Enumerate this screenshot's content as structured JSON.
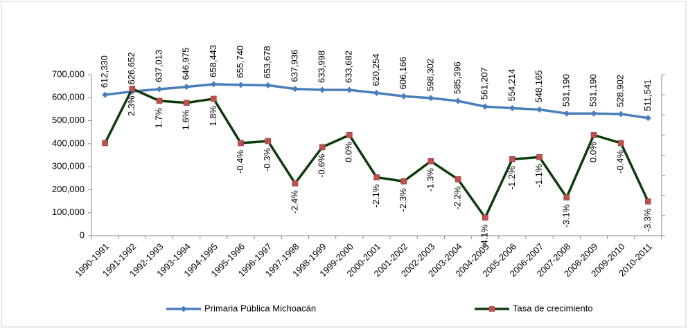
{
  "chart_data": {
    "type": "line",
    "categories": [
      "1990-1991",
      "1991-1992",
      "1992-1993",
      "1993-1994",
      "1994-1995",
      "1995-1996",
      "1996-1997",
      "1997-1998",
      "1998-1999",
      "1999-2000",
      "2000-2001",
      "2001-2002",
      "2002-2003",
      "2003-2004",
      "2004-2005",
      "2005-2006",
      "2006-2007",
      "2007-2008",
      "2008-2009",
      "2009-2010",
      "2010-2011"
    ],
    "ylim": [
      0,
      700000
    ],
    "yticks": [
      0,
      {
        "value": 100000,
        "label": "100,000"
      },
      {
        "value": 200000,
        "label": "200,000"
      },
      {
        "value": 300000,
        "label": "300,000"
      },
      {
        "value": 400000,
        "label": "400,000"
      },
      {
        "value": 500000,
        "label": "500,000"
      },
      {
        "value": 600000,
        "label": "600,000"
      },
      {
        "value": 700000,
        "label": "700,000"
      }
    ],
    "y2lim": [
      -5,
      3
    ],
    "y2ticks": [
      -5,
      -4,
      -3,
      -2,
      -1,
      0,
      1,
      2,
      3
    ],
    "legend": "bottom",
    "series": [
      {
        "name": "Primaria Pública Michoacán",
        "color": "#4a7ebb",
        "marker_color": "#4a7ebb",
        "values": [
          612330,
          626652,
          637013,
          646975,
          658443,
          655740,
          653678,
          637936,
          633998,
          633682,
          620254,
          606166,
          598302,
          585396,
          561207,
          554214,
          548165,
          531190,
          531190,
          528902,
          511541
        ],
        "value_labels": [
          "612,330",
          "626,652",
          "637,013",
          "646,975",
          "658,443",
          "655,740",
          "653,678",
          "637,936",
          "633,998",
          "633,682",
          "620,254",
          "606,166",
          "598,302",
          "585,396",
          "561,207",
          "554,214",
          "548,165",
          "531,190",
          "531,190",
          "528,902",
          "511,541"
        ]
      },
      {
        "name": "Tasa de crecimiento",
        "color": "#0b3b0b",
        "marker_color": "#c0504d",
        "axis": "y2",
        "values": [
          -0.4,
          2.3,
          1.7,
          1.6,
          1.8,
          -0.4,
          -0.3,
          -2.4,
          -0.6,
          0.0,
          -2.1,
          -2.3,
          -1.3,
          -2.2,
          -4.1,
          -1.2,
          -1.1,
          -3.1,
          0.0,
          -0.4,
          -3.3
        ],
        "value_labels": [
          null,
          "2.3%",
          "1.7%",
          "1.6%",
          "1.8%",
          "-0.4%",
          "-0.3%",
          "-2.4%",
          "-0.6%",
          "0.0%",
          "-2.1%",
          "-2.3%",
          "-1.3%",
          "-2.2%",
          "-4.1%",
          "-1.2%",
          "-1.1%",
          "-3.1%",
          "0.0%",
          "-0.4%",
          "-3.3%"
        ]
      }
    ]
  }
}
